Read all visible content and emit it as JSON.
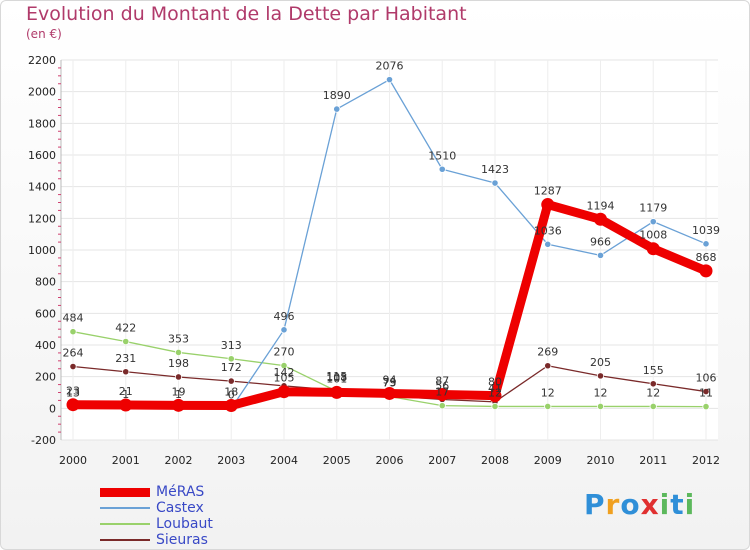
{
  "header": {
    "title": "Evolution du Montant de la Dette par Habitant",
    "subtitle": "(en €)"
  },
  "brand": {
    "letters": [
      "P",
      "r",
      "o",
      "x",
      "i",
      "t",
      "i"
    ]
  },
  "chart_data": {
    "type": "line",
    "title": "Evolution du Montant de la Dette par Habitant",
    "subtitle": "(en €)",
    "x": [
      "2000",
      "2001",
      "2002",
      "2003",
      "2004",
      "2005",
      "2006",
      "2007",
      "2008",
      "2009",
      "2010",
      "2011",
      "2012"
    ],
    "ylim": [
      -200,
      2200
    ],
    "yticks": [
      "-200",
      "0",
      "200",
      "400",
      "600",
      "800",
      "1000",
      "1200",
      "1400",
      "1600",
      "1800",
      "2000",
      "2200"
    ],
    "grid": true,
    "legend_position": "bottom-left",
    "series": [
      {
        "name": "MéRAS",
        "color": "#ee0000",
        "values": [
          23,
          21,
          19,
          18,
          105,
          101,
          94,
          87,
          80,
          1287,
          1194,
          1008,
          868
        ],
        "labels": [
          "23",
          "21",
          "19",
          "18",
          "105",
          "101",
          "94",
          "87",
          "80",
          "1287",
          "1194",
          "1008",
          "868"
        ]
      },
      {
        "name": "Castex",
        "color": "#6aa1d6",
        "values": [
          13,
          1,
          1,
          0,
          496,
          1890,
          2076,
          1510,
          1423,
          1036,
          966,
          1179,
          1039
        ],
        "labels": [
          "13",
          "1",
          "1",
          "0",
          "496",
          "1890",
          "2076",
          "1510",
          "1423",
          "1036",
          "966",
          "1179",
          "1039"
        ]
      },
      {
        "name": "Loubaut",
        "color": "#99d16b",
        "values": [
          484,
          422,
          353,
          313,
          270,
          108,
          75,
          17,
          12,
          12,
          12,
          12,
          11
        ],
        "labels": [
          "484",
          "422",
          "353",
          "313",
          "270",
          "108",
          "75",
          "17",
          "12",
          "12",
          "12",
          "12",
          "11"
        ]
      },
      {
        "name": "Sieuras",
        "color": "#7a2a2a",
        "values": [
          264,
          231,
          198,
          172,
          142,
          115,
          79,
          56,
          41,
          269,
          205,
          155,
          106
        ],
        "labels": [
          "264",
          "231",
          "198",
          "172",
          "142",
          "115",
          "79",
          "56",
          "41",
          "269",
          "205",
          "155",
          "106"
        ]
      }
    ]
  }
}
